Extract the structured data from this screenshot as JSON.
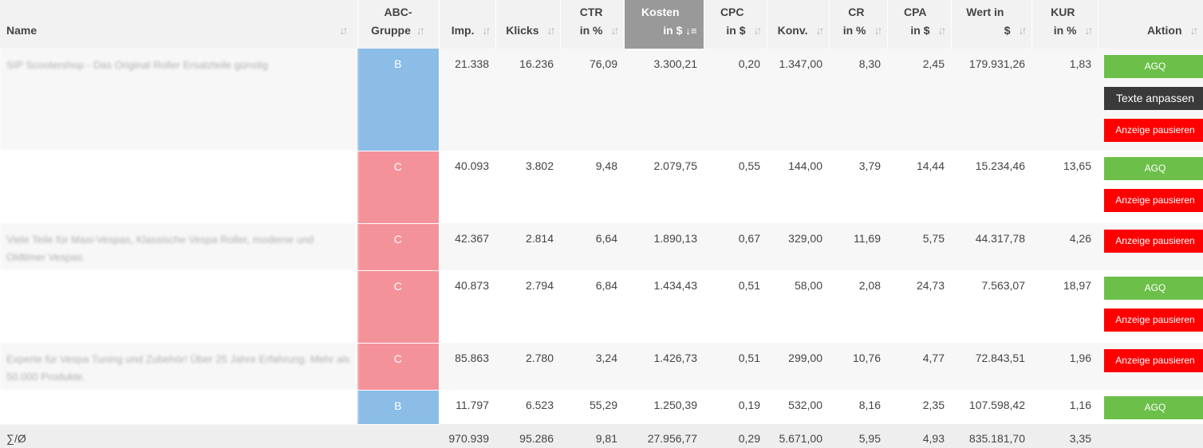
{
  "headers": {
    "name": "Name",
    "abc": [
      "ABC-",
      "Gruppe"
    ],
    "imp": "Imp.",
    "klicks": "Klicks",
    "ctr": [
      "CTR",
      "in %"
    ],
    "kosten": [
      "Kosten",
      "in $"
    ],
    "cpc": [
      "CPC",
      "in $"
    ],
    "konv": "Konv.",
    "cr": [
      "CR",
      "in %"
    ],
    "cpa": [
      "CPA",
      "in $"
    ],
    "wert": [
      "Wert in",
      "$"
    ],
    "kur": [
      "KUR",
      "in %"
    ],
    "aktion": "Aktion"
  },
  "sort_icon": "sort-arrows-icon",
  "active_sort_icon": "sort-desc-icon",
  "buttons": {
    "agq": "AGQ",
    "texte": "Texte anpassen",
    "pause": "Anzeige pausieren"
  },
  "colors": {
    "group_B": "#8bbde6",
    "group_C": "#f4929a",
    "agq": "#6cc04a",
    "pause": "#ff0000",
    "texte": "#3a3a3a",
    "active_header": "#999999"
  },
  "rows": [
    {
      "name": "SIP Scootershop - Das Original Roller Ersatzteile günstig",
      "group": "B",
      "imp": "21.338",
      "klicks": "16.236",
      "ctr": "76,09",
      "kosten": "3.300,21",
      "cpc": "0,20",
      "konv": "1.347,00",
      "cr": "8,30",
      "cpa": "2,45",
      "wert": "179.931,26",
      "kur": "1,83"
    },
    {
      "name": "",
      "group": "C",
      "imp": "40.093",
      "klicks": "3.802",
      "ctr": "9,48",
      "kosten": "2.079,75",
      "cpc": "0,55",
      "konv": "144,00",
      "cr": "3,79",
      "cpa": "14,44",
      "wert": "15.234,46",
      "kur": "13,65"
    },
    {
      "name": "Viele Teile für Maxi-Vespas, Klassische Vespa Roller, moderne und Oldtimer Vespas.",
      "group": "C",
      "imp": "42.367",
      "klicks": "2.814",
      "ctr": "6,64",
      "kosten": "1.890,13",
      "cpc": "0,67",
      "konv": "329,00",
      "cr": "11,69",
      "cpa": "5,75",
      "wert": "44.317,78",
      "kur": "4,26"
    },
    {
      "name": "",
      "group": "C",
      "imp": "40.873",
      "klicks": "2.794",
      "ctr": "6,84",
      "kosten": "1.434,43",
      "cpc": "0,51",
      "konv": "58,00",
      "cr": "2,08",
      "cpa": "24,73",
      "wert": "7.563,07",
      "kur": "18,97"
    },
    {
      "name": "Experte für Vespa Tuning und Zubehör! Über 25 Jahre Erfahrung. Mehr als 50.000 Produkte.",
      "group": "C",
      "imp": "85.863",
      "klicks": "2.780",
      "ctr": "3,24",
      "kosten": "1.426,73",
      "cpc": "0,51",
      "konv": "299,00",
      "cr": "10,76",
      "cpa": "4,77",
      "wert": "72.843,51",
      "kur": "1,96"
    },
    {
      "name": "",
      "group": "B",
      "imp": "11.797",
      "klicks": "6.523",
      "ctr": "55,29",
      "kosten": "1.250,39",
      "cpc": "0,19",
      "konv": "532,00",
      "cr": "8,16",
      "cpa": "2,35",
      "wert": "107.598,42",
      "kur": "1,16"
    }
  ],
  "footer": {
    "label": "∑/Ø",
    "imp": "970.939",
    "klicks": "95.286",
    "ctr": "9,81",
    "kosten": "27.956,77",
    "cpc": "0,29",
    "konv": "5.671,00",
    "cr": "5,95",
    "cpa": "4,93",
    "wert": "835.181,70",
    "kur": "3,35"
  }
}
